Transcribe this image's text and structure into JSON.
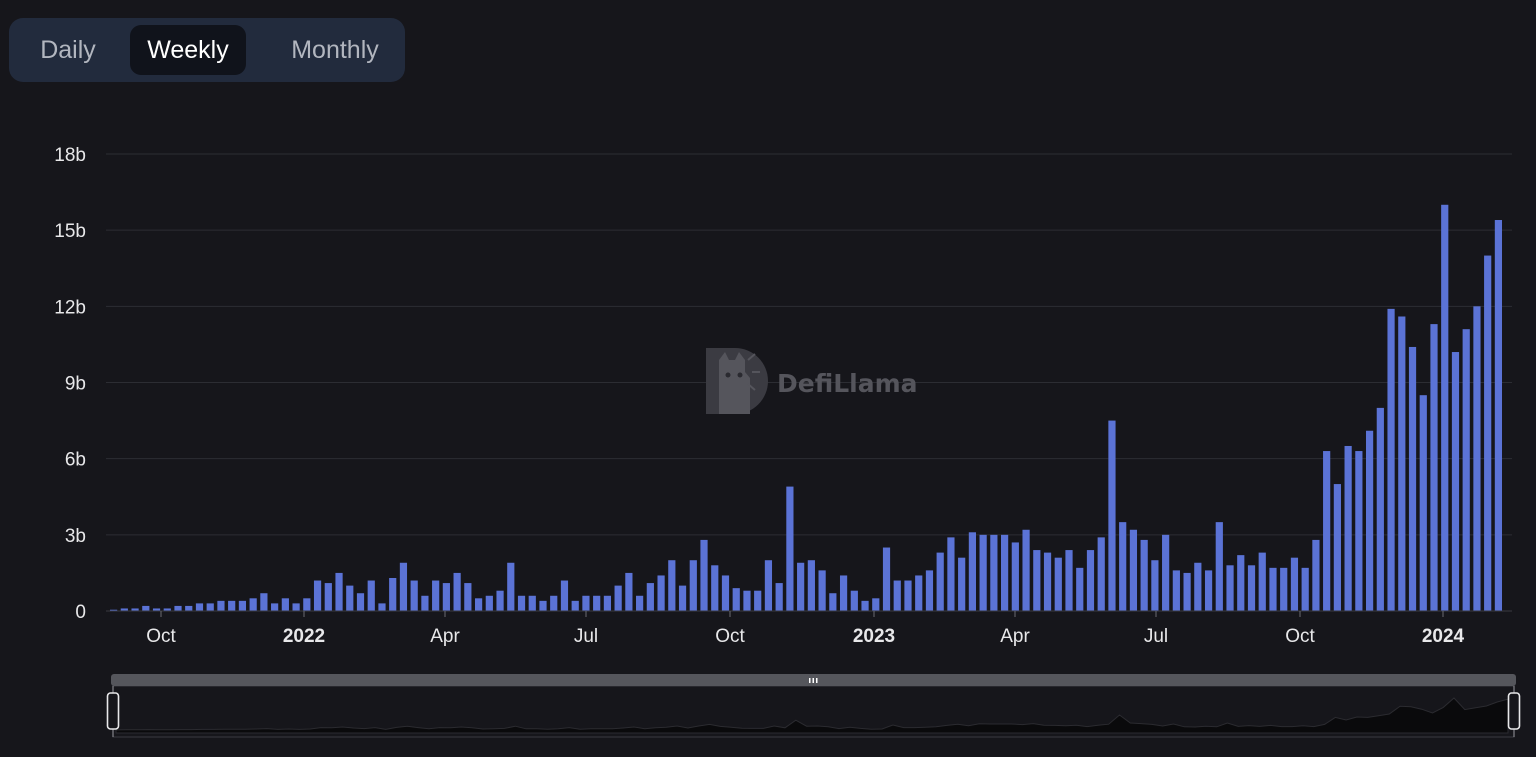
{
  "toggle": {
    "options": [
      "Daily",
      "Weekly",
      "Monthly"
    ],
    "selected": "Weekly"
  },
  "watermark": "DefiLlama",
  "colors": {
    "bar": "#5b73d6",
    "background": "#16161b",
    "grid": "#2c2d33"
  },
  "chart_data": {
    "type": "bar",
    "title": "",
    "xlabel": "",
    "ylabel": "",
    "interval": "weekly",
    "ylim": [
      0,
      18000000000
    ],
    "y_ticks": [
      "0",
      "3b",
      "6b",
      "9b",
      "12b",
      "15b",
      "18b"
    ],
    "x_tick_labels": [
      {
        "label": "Oct",
        "bold": false
      },
      {
        "label": "2022",
        "bold": true
      },
      {
        "label": "Apr",
        "bold": false
      },
      {
        "label": "Jul",
        "bold": false
      },
      {
        "label": "Oct",
        "bold": false
      },
      {
        "label": "2023",
        "bold": true
      },
      {
        "label": "Apr",
        "bold": false
      },
      {
        "label": "Jul",
        "bold": false
      },
      {
        "label": "Oct",
        "bold": false
      },
      {
        "label": "2024",
        "bold": true
      }
    ],
    "grid": true,
    "legend": "none",
    "values_billions": [
      0.05,
      0.1,
      0.1,
      0.2,
      0.1,
      0.1,
      0.2,
      0.2,
      0.3,
      0.3,
      0.4,
      0.4,
      0.4,
      0.5,
      0.7,
      0.3,
      0.5,
      0.3,
      0.5,
      1.2,
      1.1,
      1.5,
      1.0,
      0.7,
      1.2,
      0.3,
      1.3,
      1.9,
      1.2,
      0.6,
      1.2,
      1.1,
      1.5,
      1.1,
      0.5,
      0.6,
      0.8,
      1.9,
      0.6,
      0.6,
      0.4,
      0.6,
      1.2,
      0.4,
      0.6,
      0.6,
      0.6,
      1.0,
      1.5,
      0.6,
      1.1,
      1.4,
      2.0,
      1.0,
      2.0,
      2.8,
      1.8,
      1.4,
      0.9,
      0.8,
      0.8,
      2.0,
      1.1,
      4.9,
      1.9,
      2.0,
      1.6,
      0.7,
      1.4,
      0.8,
      0.4,
      0.5,
      2.5,
      1.2,
      1.2,
      1.4,
      1.6,
      2.3,
      2.9,
      2.1,
      3.1,
      3.0,
      3.0,
      3.0,
      2.7,
      3.2,
      2.4,
      2.3,
      2.1,
      2.4,
      1.7,
      2.4,
      2.9,
      7.5,
      3.5,
      3.2,
      2.8,
      2.0,
      3.0,
      1.6,
      1.5,
      1.9,
      1.6,
      3.5,
      1.8,
      2.2,
      1.8,
      2.3,
      1.7,
      1.7,
      2.1,
      1.7,
      2.8,
      6.3,
      5.0,
      6.5,
      6.3,
      7.1,
      8.0,
      11.9,
      11.6,
      10.4,
      8.5,
      11.3,
      16.0,
      10.2,
      11.1,
      12.0,
      14.0,
      15.4
    ]
  }
}
